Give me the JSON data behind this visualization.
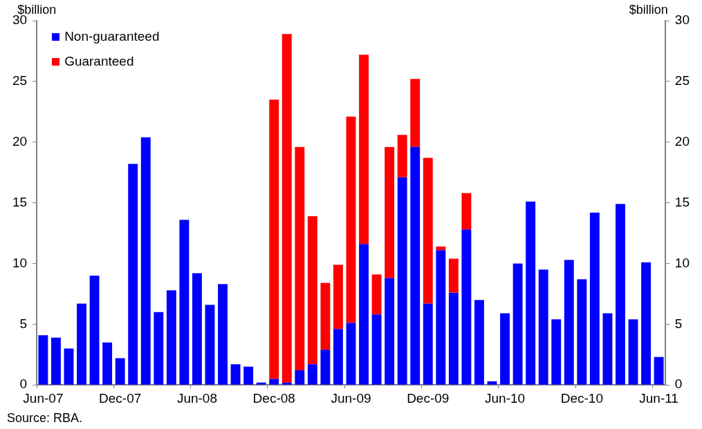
{
  "chart_data": {
    "type": "bar",
    "stacked": true,
    "categories": [
      "Jun-07",
      null,
      null,
      null,
      null,
      null,
      "Dec-07",
      null,
      null,
      null,
      null,
      null,
      "Jun-08",
      null,
      null,
      null,
      null,
      null,
      "Dec-08",
      null,
      null,
      null,
      null,
      null,
      "Jun-09",
      null,
      null,
      null,
      null,
      null,
      "Dec-09",
      null,
      null,
      null,
      null,
      null,
      "Jun-10",
      null,
      null,
      null,
      null,
      null,
      "Dec-10",
      null,
      null,
      null,
      null,
      null,
      "Jun-11"
    ],
    "series": [
      {
        "name": "Non-guaranteed",
        "color": "#0000ff",
        "values": [
          4.1,
          3.9,
          3.0,
          6.7,
          9.0,
          3.5,
          2.2,
          18.2,
          20.4,
          6.0,
          7.8,
          13.6,
          9.2,
          6.6,
          8.3,
          1.7,
          1.5,
          0.2,
          0.5,
          0.2,
          1.2,
          1.7,
          2.9,
          4.6,
          5.1,
          11.6,
          5.8,
          8.8,
          17.1,
          19.6,
          6.7,
          11.1,
          7.6,
          12.8,
          7.0,
          0.3,
          5.9,
          10.0,
          15.1,
          9.5,
          5.4,
          10.3,
          8.7,
          14.2,
          5.9,
          14.9,
          5.4,
          10.1,
          2.3
        ]
      },
      {
        "name": "Guaranteed",
        "color": "#ff0000",
        "values": [
          0,
          0,
          0,
          0,
          0,
          0,
          0,
          0,
          0,
          0,
          0,
          0,
          0,
          0,
          0,
          0,
          0,
          0,
          23.0,
          28.7,
          18.4,
          12.2,
          5.5,
          5.3,
          17.0,
          15.6,
          3.3,
          10.8,
          3.5,
          5.6,
          12.0,
          0.3,
          2.8,
          3.0,
          0,
          0,
          0,
          0,
          0,
          0,
          0,
          0,
          0,
          0,
          0,
          0,
          0,
          0,
          0
        ]
      }
    ],
    "ylim": [
      0,
      30
    ],
    "yticks": [
      0,
      5,
      10,
      15,
      20,
      25,
      30
    ],
    "y2lim": [
      0,
      30
    ],
    "y2ticks": [
      0,
      5,
      10,
      15,
      20,
      25,
      30
    ],
    "ylabel": "$billion",
    "y2label": "$billion",
    "legend": "top left",
    "annotations": [
      "Source: RBA."
    ]
  }
}
